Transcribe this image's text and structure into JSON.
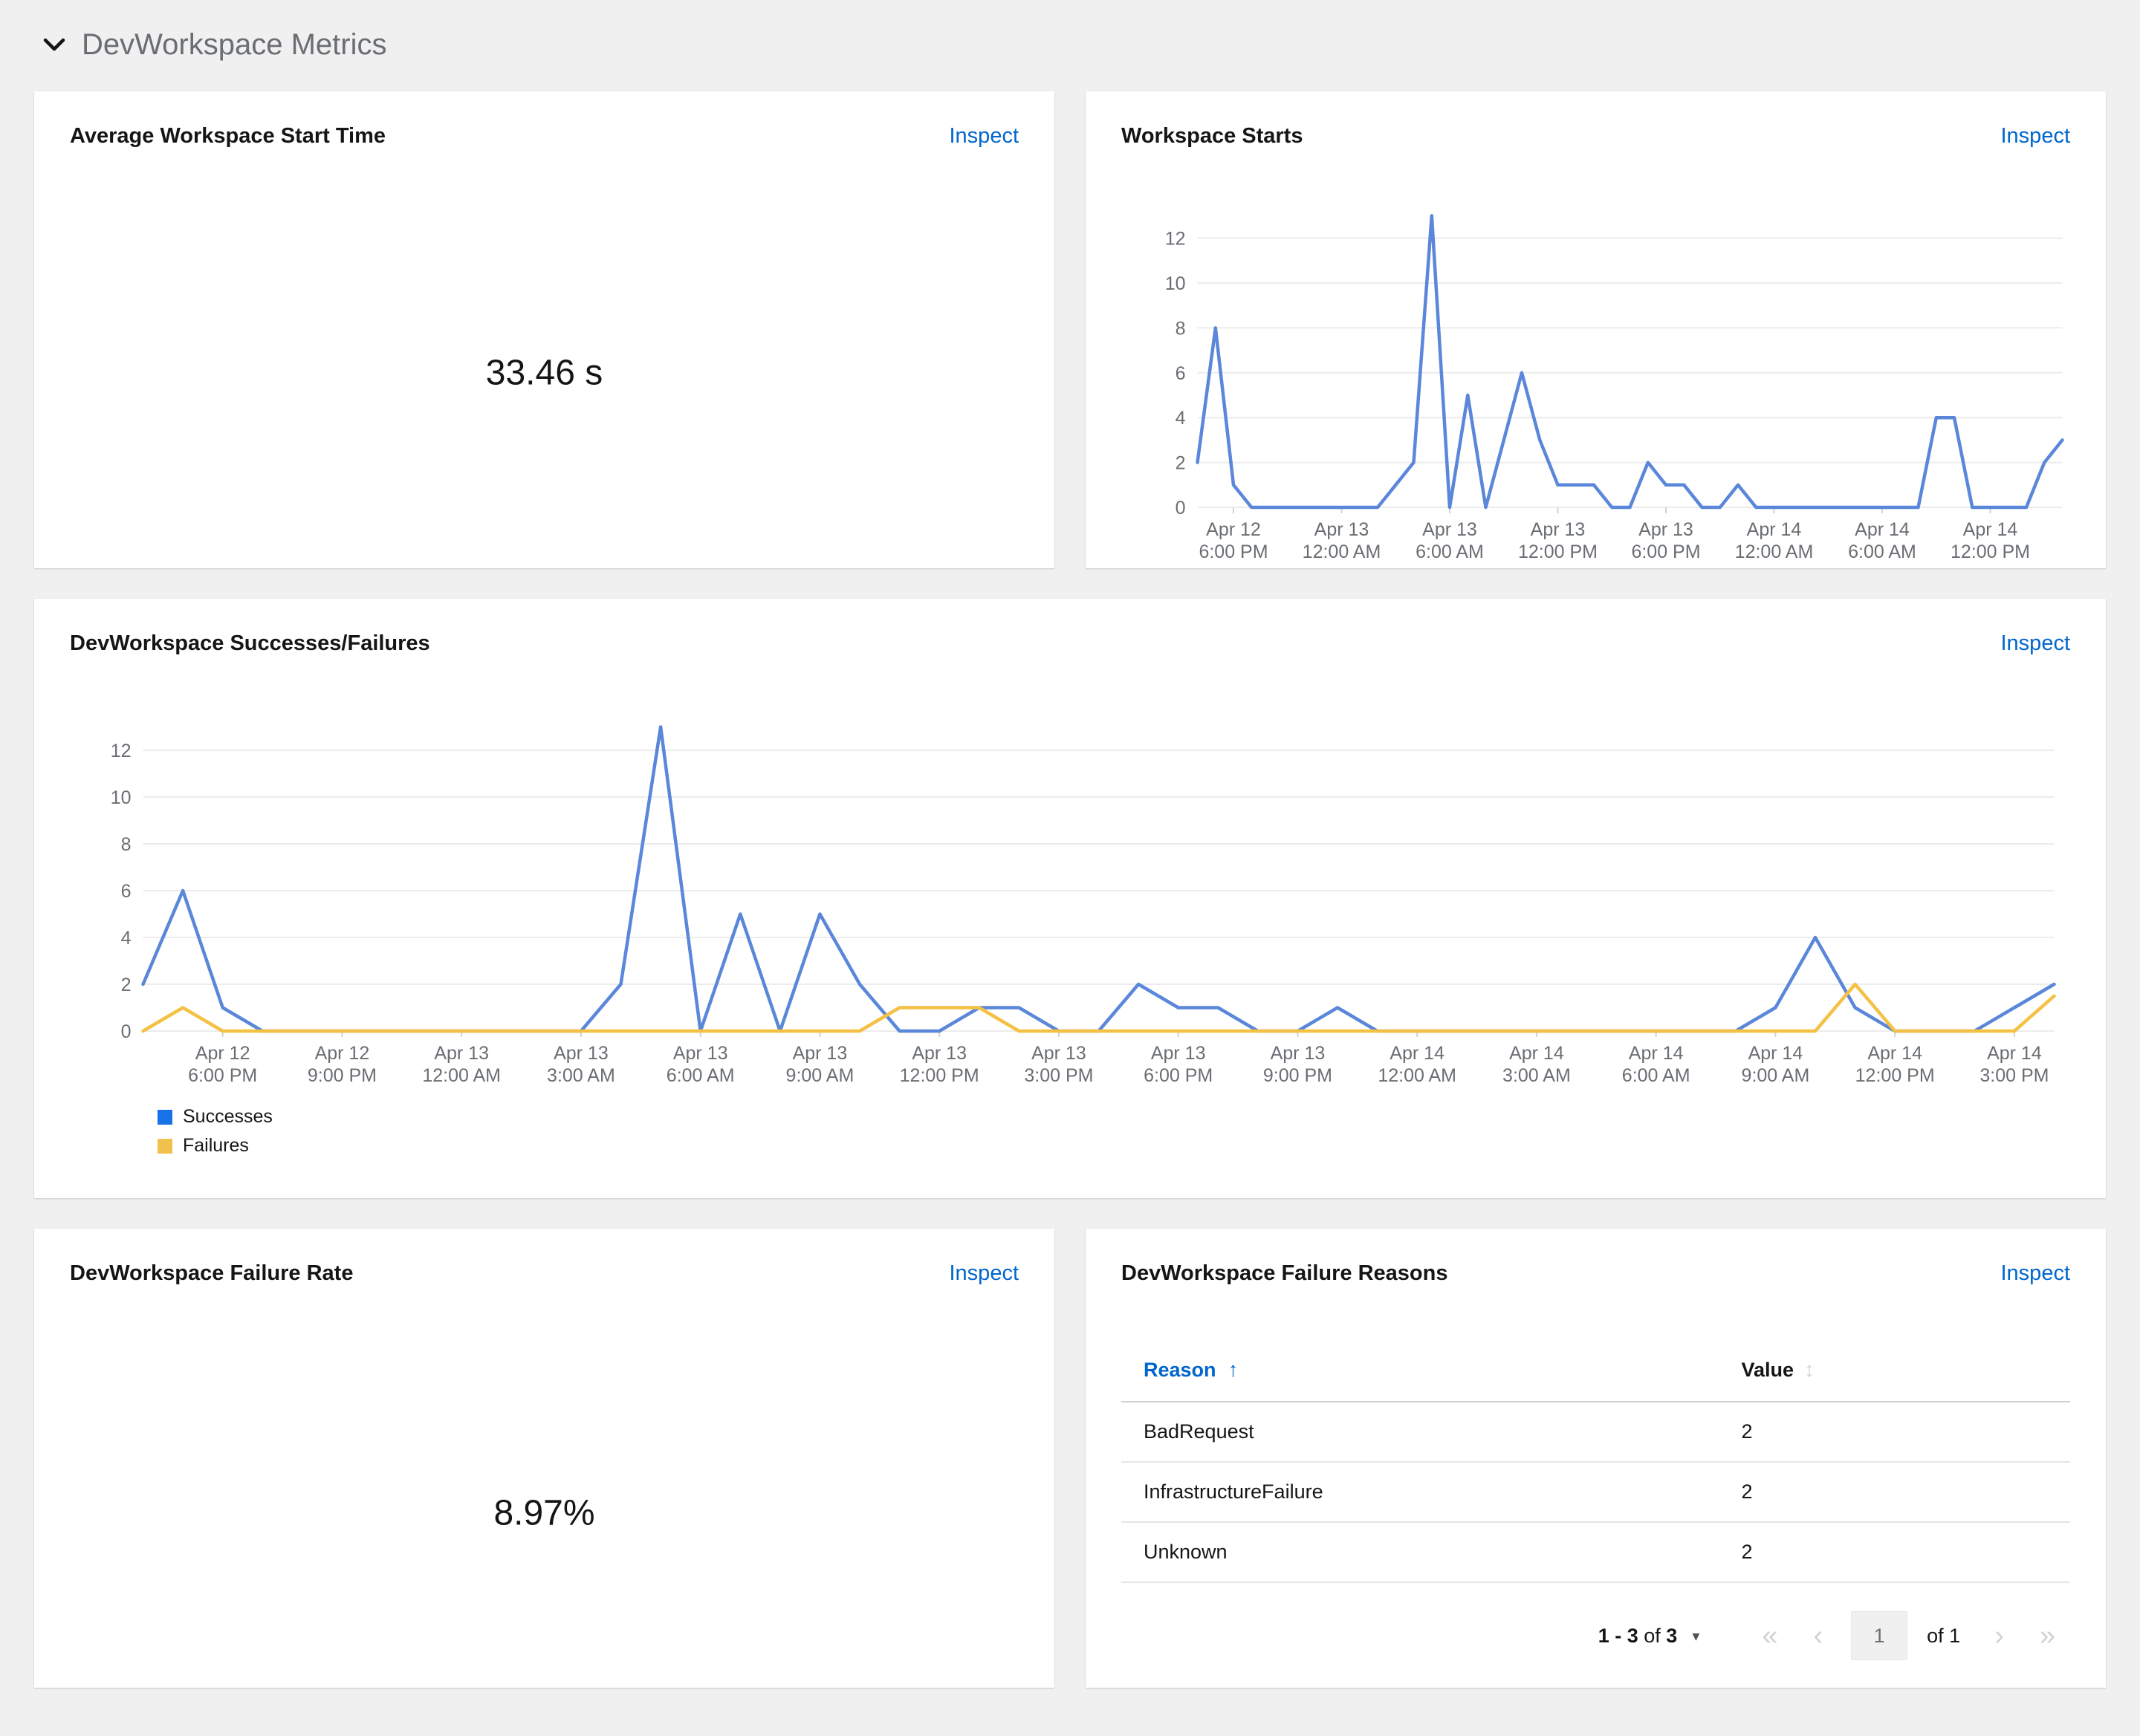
{
  "section": {
    "title": "DevWorkspace Metrics"
  },
  "cards": {
    "avg_start_time": {
      "title": "Average Workspace Start Time",
      "inspect_label": "Inspect",
      "value": "33.46 s"
    },
    "workspace_starts": {
      "title": "Workspace Starts",
      "inspect_label": "Inspect"
    },
    "successes_failures": {
      "title": "DevWorkspace Successes/Failures",
      "inspect_label": "Inspect"
    },
    "failure_rate": {
      "title": "DevWorkspace Failure Rate",
      "inspect_label": "Inspect",
      "value": "8.97%"
    },
    "failure_reasons": {
      "title": "DevWorkspace Failure Reasons",
      "inspect_label": "Inspect",
      "table": {
        "columns": [
          "Reason",
          "Value"
        ],
        "sorted_by": "Reason",
        "sort_direction": "ascending",
        "rows": [
          {
            "reason": "BadRequest",
            "value": "2"
          },
          {
            "reason": "InfrastructureFailure",
            "value": "2"
          },
          {
            "reason": "Unknown",
            "value": "2"
          }
        ]
      },
      "pagination": {
        "range_start": "1 - 3",
        "of_text": "of",
        "total": "3",
        "current_page": "1",
        "page_count_label": "of 1"
      }
    }
  },
  "chart_data": [
    {
      "type": "line",
      "title": "Workspace Starts",
      "xlabel": "",
      "ylabel": "",
      "ylim": [
        0,
        13.5
      ],
      "y_ticks": [
        0,
        2,
        4,
        6,
        8,
        10,
        12
      ],
      "grid": "horizontal",
      "legend_position": "none",
      "x_interval": "1 hour",
      "x_ticks": [
        [
          "Apr 12",
          "6:00 PM"
        ],
        [
          "Apr 13",
          "12:00 AM"
        ],
        [
          "Apr 13",
          "6:00 AM"
        ],
        [
          "Apr 13",
          "12:00 PM"
        ],
        [
          "Apr 13",
          "6:00 PM"
        ],
        [
          "Apr 14",
          "12:00 AM"
        ],
        [
          "Apr 14",
          "6:00 AM"
        ],
        [
          "Apr 14",
          "12:00 PM"
        ]
      ],
      "x_tick_indices": [
        2,
        8,
        14,
        20,
        26,
        32,
        38,
        44
      ],
      "series": [
        {
          "name": "Workspace Starts",
          "color": "#5b87da",
          "values": [
            2,
            8,
            1,
            0,
            0,
            0,
            0,
            0,
            0,
            0,
            0,
            1,
            2,
            13,
            0,
            5,
            0,
            3,
            6,
            3,
            1,
            1,
            1,
            0,
            0,
            2,
            1,
            1,
            0,
            0,
            1,
            0,
            0,
            0,
            0,
            0,
            0,
            0,
            0,
            0,
            0,
            4,
            4,
            0,
            0,
            0,
            0,
            2,
            3
          ]
        }
      ]
    },
    {
      "type": "line",
      "title": "DevWorkspace Successes/Failures",
      "xlabel": "",
      "ylabel": "",
      "ylim": [
        0,
        13.5
      ],
      "y_ticks": [
        0,
        2,
        4,
        6,
        8,
        10,
        12
      ],
      "grid": "horizontal",
      "legend_position": "bottom-left",
      "x_interval": "1 hour",
      "x_ticks": [
        [
          "Apr 12",
          "6:00 PM"
        ],
        [
          "Apr 12",
          "9:00 PM"
        ],
        [
          "Apr 13",
          "12:00 AM"
        ],
        [
          "Apr 13",
          "3:00 AM"
        ],
        [
          "Apr 13",
          "6:00 AM"
        ],
        [
          "Apr 13",
          "9:00 AM"
        ],
        [
          "Apr 13",
          "12:00 PM"
        ],
        [
          "Apr 13",
          "3:00 PM"
        ],
        [
          "Apr 13",
          "6:00 PM"
        ],
        [
          "Apr 13",
          "9:00 PM"
        ],
        [
          "Apr 14",
          "12:00 AM"
        ],
        [
          "Apr 14",
          "3:00 AM"
        ],
        [
          "Apr 14",
          "6:00 AM"
        ],
        [
          "Apr 14",
          "9:00 AM"
        ],
        [
          "Apr 14",
          "12:00 PM"
        ],
        [
          "Apr 14",
          "3:00 PM"
        ]
      ],
      "x_tick_indices": [
        2,
        5,
        8,
        11,
        14,
        17,
        20,
        23,
        26,
        29,
        32,
        35,
        38,
        41,
        44,
        47
      ],
      "series": [
        {
          "name": "Successes",
          "color": "#5b87da",
          "legend_color": "#1672e6",
          "values": [
            2,
            6,
            1,
            0,
            0,
            0,
            0,
            0,
            0,
            0,
            0,
            0,
            2,
            13,
            0,
            5,
            0,
            5,
            2,
            0,
            0,
            1,
            1,
            0,
            0,
            2,
            1,
            1,
            0,
            0,
            1,
            0,
            0,
            0,
            0,
            0,
            0,
            0,
            0,
            0,
            0,
            1,
            4,
            1,
            0,
            0,
            0,
            1,
            2
          ]
        },
        {
          "name": "Failures",
          "color": "#f4c145",
          "legend_color": "#f0c24b",
          "values": [
            0,
            1,
            0,
            0,
            0,
            0,
            0,
            0,
            0,
            0,
            0,
            0,
            0,
            0,
            0,
            0,
            0,
            0,
            0,
            1,
            1,
            1,
            0,
            0,
            0,
            0,
            0,
            0,
            0,
            0,
            0,
            0,
            0,
            0,
            0,
            0,
            0,
            0,
            0,
            0,
            0,
            0,
            0,
            2,
            0,
            0,
            0,
            0,
            1.5
          ]
        }
      ]
    }
  ],
  "colors": {
    "page_background": "#f0f0f0",
    "card_background": "#ffffff",
    "link": "#0066cc",
    "section_title": "#6a6e73",
    "axis_label": "#6a6e73",
    "gridline": "#ececec",
    "tick_mark": "#d2d2d2",
    "line_blue": "#5b87da",
    "line_gold": "#f4c145"
  },
  "icons": {
    "angle_double_left": "«",
    "angle_left": "‹",
    "angle_right": "›",
    "angle_double_right": "»",
    "caret_down": "▾",
    "sort_asc": "↑",
    "sort_both": "↕"
  }
}
